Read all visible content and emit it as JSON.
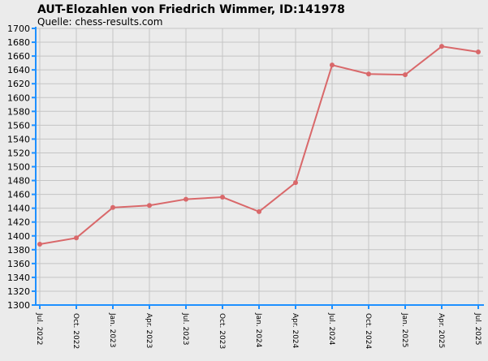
{
  "chart_data": {
    "type": "line",
    "title": "AUT-Elozahlen von Friedrich Wimmer, ID:141978",
    "subtitle": "Quelle: chess-results.com",
    "categories": [
      "Jul. 2022",
      "Oct. 2022",
      "Jan. 2023",
      "Apr. 2023",
      "Jul. 2023",
      "Oct. 2023",
      "Jan. 2024",
      "Apr. 2024",
      "Jul. 2024",
      "Oct. 2024",
      "Jan. 2025",
      "Apr. 2025",
      "Jul. 2025"
    ],
    "series": [
      {
        "color": "#d9686a",
        "values": [
          1388,
          1397,
          1441,
          1444,
          1453,
          1456,
          1435,
          1477,
          1647,
          1634,
          1633,
          1674,
          1666
        ]
      }
    ],
    "ylim": [
      1300,
      1700
    ],
    "yticks": [
      1300,
      1320,
      1340,
      1360,
      1380,
      1400,
      1420,
      1440,
      1460,
      1480,
      1500,
      1520,
      1540,
      1560,
      1580,
      1600,
      1620,
      1640,
      1660,
      1680,
      1700
    ],
    "grid": true
  }
}
